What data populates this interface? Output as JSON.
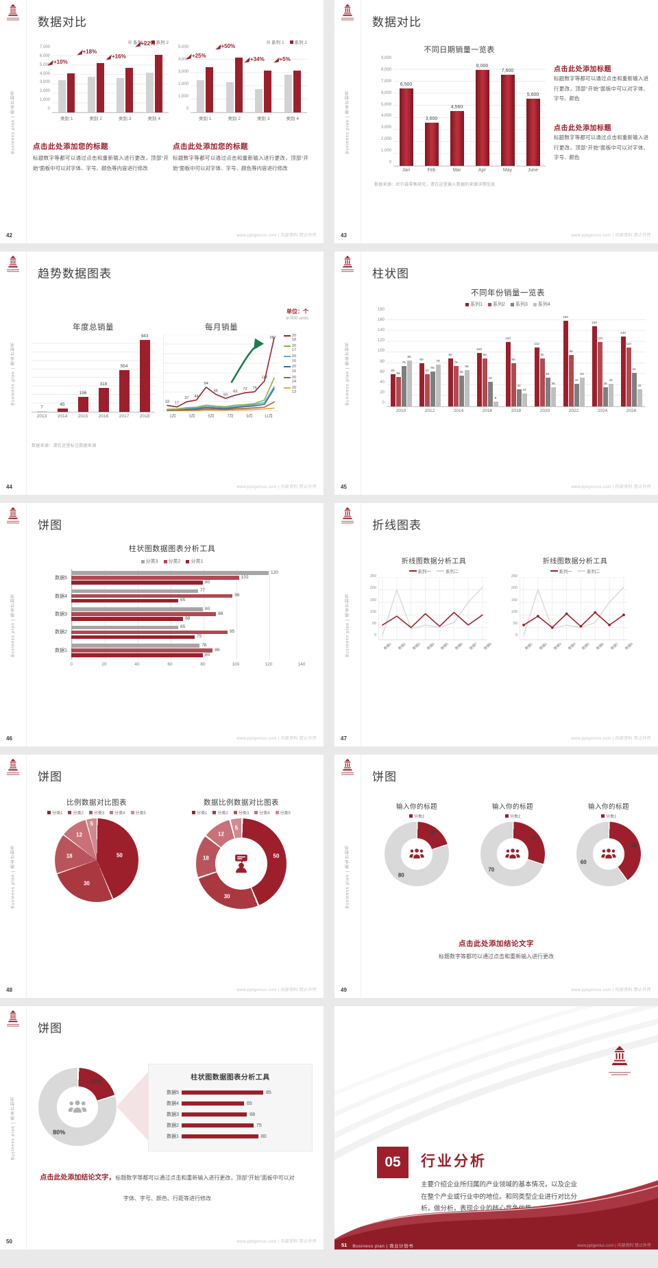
{
  "common": {
    "side_text": "Business plan | 商业计划书",
    "footer_right": "www.pptgenius.com | 内部资料 禁止外传",
    "accent": "#9C1F2B",
    "gray_bar": "#D2D2D2",
    "logo_icon": "pagoda-emblem-icon"
  },
  "slides": [
    {
      "page": "42",
      "title": "数据对比",
      "type": "dual-annot-bar",
      "blocks": [
        {
          "heading": "点击此处添加您的标题",
          "body": "标题数字等都可以通过点击和重新输入进行更改，顶部“开始”面板中可以对字体、字号、颜色等内容进行修改"
        },
        {
          "heading": "点击此处添加您的标题",
          "body": "标题数字等都可以通过点击和重新输入进行更改，顶部“开始”面板中可以对字体、字号、颜色等内容进行修改"
        }
      ],
      "chart_data": [
        {
          "type": "bar",
          "categories": [
            "类别 1",
            "类别 2",
            "类别 3",
            "类别 4"
          ],
          "ymax": 7000,
          "yticks": [
            "7,000",
            "6,000",
            "5,000",
            "4,000",
            "3,000",
            "2,000",
            "1,000",
            "0"
          ],
          "series": [
            {
              "name": "系列 1",
              "values": [
                3500,
                3800,
                3700,
                4300
              ]
            },
            {
              "name": "系列 2",
              "values": [
                4200,
                5300,
                4800,
                6200
              ]
            }
          ],
          "annotations": [
            "+10%",
            "+18%",
            "+16%",
            "+22%"
          ]
        },
        {
          "type": "bar",
          "categories": [
            "类别 1",
            "类别 2",
            "类别 3",
            "类别 4"
          ],
          "ymax": 5000,
          "yticks": [
            "5,000",
            "4,000",
            "3,000",
            "2,000",
            "1,000",
            "0"
          ],
          "series": [
            {
              "name": "系列 1",
              "values": [
                2500,
                2300,
                1800,
                2900
              ]
            },
            {
              "name": "系列 2",
              "values": [
                3500,
                4200,
                3200,
                3200
              ]
            }
          ],
          "annotations": [
            "+25%",
            "+50%",
            "+34%",
            "+5%"
          ]
        }
      ]
    },
    {
      "page": "43",
      "title": "数据对比",
      "type": "bar-text",
      "footnote": "数据来源：尼尔森零售研究，请在这里输入数据的来源详情信息",
      "blocks": [
        {
          "heading": "点击此处添加标题",
          "body": "标题数字等都可以通过点击和重新输入进行更改，顶部“开始”面板中可以对字体、字号、颜色"
        },
        {
          "heading": "点击此处添加标题",
          "body": "标题数字等都可以通过点击和重新输入进行更改，顶部“开始”面板中可以对字体、字号、颜色"
        }
      ],
      "chart_data": {
        "type": "bar",
        "title": "不同日期销量一览表",
        "categories": [
          "Jan",
          "Feb",
          "Mar",
          "Apr",
          "May",
          "June"
        ],
        "values": [
          6500,
          3600,
          4560,
          8000,
          7600,
          5600
        ],
        "labels": [
          "6,500",
          "3,600",
          "4,560",
          "8,000",
          "7,600",
          "5,600"
        ],
        "ymax": 9000,
        "yticks": [
          "9,000",
          "8,000",
          "7,000",
          "6,000",
          "5,000",
          "4,000",
          "3,000",
          "2,000",
          "1,000",
          "0"
        ]
      }
    },
    {
      "page": "44",
      "title": "趋势数据图表",
      "type": "trend",
      "unit": "单位：个",
      "unit_sub": "in'000 units",
      "footnote": "数据来源：请在这里标注数据来源",
      "chart_data": [
        {
          "type": "bar",
          "title": "年度总销量",
          "categories": [
            "2013",
            "2014",
            "2015",
            "2016",
            "2017",
            "2018"
          ],
          "values": [
            7,
            45,
            196,
            318,
            554,
            943
          ],
          "ymax": 1000
        },
        {
          "type": "line",
          "title": "每月销量",
          "x": [
            "1月",
            "3月",
            "5月",
            "7月",
            "9月",
            "11月"
          ],
          "ymax": 300,
          "annotation": "green-up-arrow",
          "series": [
            {
              "name": "2018",
              "color": "#9C1F2B",
              "labeled": true,
              "values": [
                23,
                17,
                37,
                44,
                94,
                66,
                50,
                63,
                72,
                76,
                118,
                287
              ]
            },
            {
              "name": "2017",
              "color": "#8EB43C",
              "values": [
                8,
                9,
                14,
                16,
                24,
                20,
                18,
                24,
                26,
                30,
                44,
                130
              ]
            },
            {
              "name": "2016",
              "color": "#62A9CC",
              "values": [
                6,
                7,
                11,
                13,
                19,
                16,
                14,
                19,
                22,
                26,
                34,
                96
              ]
            },
            {
              "name": "2015",
              "color": "#2F6D9B",
              "values": [
                5,
                6,
                8,
                10,
                15,
                12,
                11,
                15,
                18,
                21,
                27,
                88
              ]
            },
            {
              "name": "2014",
              "color": "#B85C30",
              "values": [
                3,
                4,
                5,
                6,
                9,
                8,
                7,
                10,
                11,
                13,
                16,
                36
              ]
            },
            {
              "name": "2013",
              "color": "#E9A23B",
              "values": [
                2,
                2,
                3,
                3,
                5,
                4,
                4,
                5,
                6,
                7,
                9,
                12
              ]
            }
          ]
        }
      ]
    },
    {
      "page": "45",
      "title": "柱状图",
      "type": "grouped-bar",
      "chart_data": {
        "type": "bar",
        "title": "不同年份销量一览表",
        "legend": [
          "系列1",
          "系列2",
          "系列3",
          "系列4"
        ],
        "colors": [
          "#9C1F2B",
          "#B04A52",
          "#7F7F7F",
          "#BFBFBF"
        ],
        "categories": [
          "2010",
          "2012",
          "2014",
          "2016",
          "2018",
          "2020",
          "2022",
          "2024",
          "2026"
        ],
        "ymax": 180,
        "yticks": [
          "180",
          "160",
          "140",
          "120",
          "100",
          "80",
          "60",
          "40",
          "20",
          "0"
        ],
        "series": [
          {
            "name": "系列1",
            "values": [
              60,
              80,
              90,
              100,
              120,
              110,
              160,
              150,
              130
            ]
          },
          {
            "name": "系列2",
            "values": [
              55,
              60,
              75,
              90,
              80,
              90,
              96,
              120,
              110
            ]
          },
          {
            "name": "系列3",
            "values": [
              75,
              65,
              58,
              46,
              32,
              54,
              42,
              36,
              62
            ]
          },
          {
            "name": "系列4",
            "values": [
              85,
              78,
              68,
              9,
              24,
              36,
              53,
              42,
              32
            ]
          }
        ]
      }
    },
    {
      "page": "46",
      "title": "饼图",
      "type": "hbar",
      "chart_data": {
        "type": "bar",
        "orientation": "horizontal",
        "title": "柱状图数据图表分析工具",
        "legend": [
          "分类3",
          "分类2",
          "分类1"
        ],
        "colors": [
          "#A6A6A6",
          "#B04A52",
          "#9C1F2B"
        ],
        "rows": [
          "数据5",
          "数据4",
          "数据3",
          "数据2",
          "数据1"
        ],
        "series": [
          {
            "name": "分类3",
            "values": [
              120,
              77,
              80,
              65,
              78
            ]
          },
          {
            "name": "分类2",
            "values": [
              102,
              98,
              88,
              95,
              86
            ]
          },
          {
            "name": "分类1",
            "values": [
              80,
              65,
              68,
              75,
              80
            ]
          }
        ],
        "xmax": 140,
        "xticks": [
          "0",
          "20",
          "40",
          "60",
          "80",
          "100",
          "120",
          "140"
        ]
      }
    },
    {
      "page": "47",
      "title": "折线图表",
      "type": "dual-line",
      "chart_data": [
        {
          "type": "line",
          "title": "折线图数据分析工具",
          "legend": [
            "系列一",
            "系列二"
          ],
          "x": [
            "数据1",
            "数据2",
            "数据3",
            "数据4",
            "数据5",
            "数据6",
            "数据7",
            "数据8"
          ],
          "ymax": 250,
          "yticks": [
            "250",
            "200",
            "150",
            "100",
            "50",
            "0"
          ],
          "series": [
            {
              "name": "系列一",
              "color": "#9C1F2B",
              "values": [
                60,
                95,
                50,
                105,
                55,
                110,
                60,
                100
              ],
              "markers": false
            },
            {
              "name": "系列二",
              "color": "#DCDCDC",
              "values": [
                20,
                200,
                45,
                60,
                50,
                70,
                150,
                210
              ]
            }
          ]
        },
        {
          "type": "line",
          "title": "折线图数据分析工具",
          "legend": [
            "系列一",
            "系列二"
          ],
          "x": [
            "数据1",
            "数据2",
            "数据3",
            "数据4",
            "数据5",
            "数据6",
            "数据7",
            "数据8"
          ],
          "ymax": 250,
          "yticks": [
            "250",
            "200",
            "150",
            "100",
            "50",
            "0"
          ],
          "series": [
            {
              "name": "系列一",
              "color": "#9C1F2B",
              "values": [
                60,
                95,
                50,
                105,
                55,
                110,
                60,
                100
              ],
              "markers": true
            },
            {
              "name": "系列二",
              "color": "#DCDCDC",
              "values": [
                20,
                200,
                45,
                60,
                50,
                70,
                150,
                210
              ]
            }
          ]
        }
      ]
    },
    {
      "page": "48",
      "title": "饼图",
      "type": "pie-donut",
      "chart_data": [
        {
          "type": "pie",
          "title": "比例数据对比图表",
          "legend": [
            "分类1",
            "分类2",
            "分类3",
            "分类4",
            "分类5"
          ],
          "values": [
            50,
            30,
            18,
            12,
            5
          ],
          "colors": [
            "#9C1F2B",
            "#A93840",
            "#BA545C",
            "#C97178",
            "#D08A90"
          ]
        },
        {
          "type": "donut",
          "title": "数据比例数据对比图表",
          "legend": [
            "分类1",
            "分类2",
            "分类3",
            "分类4",
            "分类5"
          ],
          "values": [
            50,
            30,
            18,
            12,
            5
          ],
          "colors": [
            "#9C1F2B",
            "#A93840",
            "#BA545C",
            "#C97178",
            "#D08A90"
          ],
          "center_icon": "person-speech-bubble-icon"
        }
      ]
    },
    {
      "page": "49",
      "title": "饼图",
      "type": "triple-donut",
      "conclusion": "点击此处添加结论文字",
      "note": "标题数字等都可以通过点击和重新输入进行更改",
      "chart_data": [
        {
          "type": "donut",
          "title": "输入你的标题",
          "legend": [
            "分类1"
          ],
          "values": [
            20,
            80
          ],
          "colors": [
            "#9C1F2B",
            "#D9D9D9"
          ],
          "center_icon": "team-icon"
        },
        {
          "type": "donut",
          "title": "输入你的标题",
          "legend": [
            "分类1"
          ],
          "values": [
            30,
            70
          ],
          "colors": [
            "#9C1F2B",
            "#D9D9D9"
          ],
          "center_icon": "team-icon"
        },
        {
          "type": "donut",
          "title": "输入你的标题",
          "legend": [
            "分类1"
          ],
          "values": [
            40,
            60
          ],
          "colors": [
            "#9C1F2B",
            "#D9D9D9"
          ],
          "center_icon": "team-icon"
        }
      ]
    },
    {
      "page": "50",
      "title": "饼图",
      "type": "donut-panel",
      "conclusion_red": "点击此处添加结论文字，",
      "conclusion_gray": "标题数字等都可以通过点击和重新输入进行更改，顶部“开始”面板中可以对字体、字号、颜色、行距等进行修改",
      "chart_data": [
        {
          "type": "donut",
          "values": [
            20,
            80
          ],
          "labels": [
            "20%",
            "80%"
          ],
          "colors": [
            "#9C1F2B",
            "#D9D9D9"
          ],
          "center_icon": "team-icon"
        },
        {
          "type": "bar",
          "orientation": "horizontal",
          "title": "柱状图数据图表分析工具",
          "rows": [
            "数据5",
            "数据4",
            "数据3",
            "数据2",
            "数据1"
          ],
          "values": [
            85,
            65,
            68,
            75,
            80
          ],
          "xmax": 100
        }
      ]
    },
    {
      "page": "51",
      "type": "section",
      "number": "05",
      "heading": "行业分析",
      "body": "主要介绍企业所归属的产业领域的基本情况，以及企业在整个产业或行业中的地位。和同类型企业进行对比分析，做分析，表现企业的核心竞争优势。",
      "footer_label": "Business plan | 商业计划书"
    }
  ]
}
